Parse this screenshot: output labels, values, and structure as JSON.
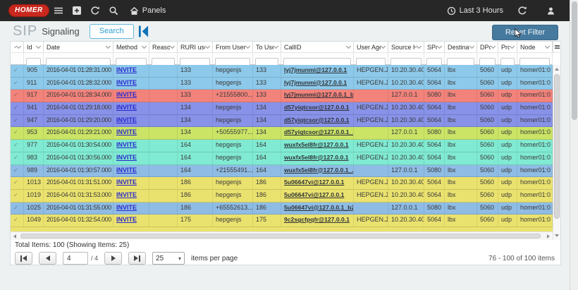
{
  "navbar": {
    "logo_text": "HOMER",
    "panels_label": "Panels",
    "time_range_label": "Last 3 Hours"
  },
  "toolbar": {
    "title_primary": "SIP",
    "title_secondary": "Signaling",
    "search_label": "Search",
    "reset_label": "Reset Filter"
  },
  "icons": {
    "navbar_left": [
      "menu-icon",
      "add-panel-icon",
      "reload-icon",
      "search-icon",
      "home-icon"
    ],
    "navbar_right": [
      "clock-icon",
      "refresh-icon",
      "user-icon"
    ],
    "title_row": [
      "kibana-icon"
    ],
    "select_caret": "▾"
  },
  "table": {
    "check_glyph": "✓",
    "columns": [
      {
        "key": "check",
        "label": ""
      },
      {
        "key": "id",
        "label": "Id"
      },
      {
        "key": "date",
        "label": "Date"
      },
      {
        "key": "method",
        "label": "Method"
      },
      {
        "key": "reason",
        "label": "Reason"
      },
      {
        "key": "ruri_user",
        "label": "RURI user"
      },
      {
        "key": "from_user",
        "label": "From User"
      },
      {
        "key": "to_user",
        "label": "To User"
      },
      {
        "key": "callid",
        "label": "CallID"
      },
      {
        "key": "user_agent",
        "label": "User Agent"
      },
      {
        "key": "source_host",
        "label": "Source Ho..."
      },
      {
        "key": "sport",
        "label": "SPort"
      },
      {
        "key": "dest_host",
        "label": "Destinatio..."
      },
      {
        "key": "dport",
        "label": "DPort"
      },
      {
        "key": "proto",
        "label": "Pro..."
      },
      {
        "key": "node",
        "label": "Node"
      }
    ],
    "rows": [
      {
        "id": "905",
        "date": "2016-04-01 01:28:31.000 +...",
        "method": "INVITE",
        "reason": "",
        "ruri_user": "133",
        "from_user": "hepgenjs",
        "to_user": "133",
        "callid": "lyj7jmunmi@127.0.0.1",
        "user_agent": "HEPGEN.J...",
        "source_host": "10.20.30.40",
        "sport": "5064",
        "dest_host": "lbx",
        "dport": "5060",
        "proto": "udp",
        "node": "homer01:0",
        "color": "skyblue"
      },
      {
        "id": "911",
        "date": "2016-04-01 01:28:32.000 +...",
        "method": "INVITE",
        "reason": "",
        "ruri_user": "133",
        "from_user": "hepgenjs",
        "to_user": "133",
        "callid": "lyj7jmunmi@127.0.0.1",
        "user_agent": "HEPGEN.J...",
        "source_host": "10.20.30.40",
        "sport": "5064",
        "dest_host": "lbx",
        "dport": "5060",
        "proto": "udp",
        "node": "homer01:0",
        "color": "skyblue"
      },
      {
        "id": "917",
        "date": "2016-04-01 01:28:34.000 +...",
        "method": "INVITE",
        "reason": "",
        "ruri_user": "133",
        "from_user": "+21555800...",
        "to_user": "133",
        "callid": "lyj7jmunmi@127.0.0.1_b...",
        "user_agent": "",
        "source_host": "127.0.0.1",
        "sport": "5080",
        "dest_host": "lbx",
        "dport": "5060",
        "proto": "udp",
        "node": "homer01:0",
        "color": "salmon"
      },
      {
        "id": "941",
        "date": "2016-04-01 01:29:18.000 +...",
        "method": "INVITE",
        "reason": "",
        "ruri_user": "134",
        "from_user": "hepgenjs",
        "to_user": "134",
        "callid": "d57yiqtcsor@127.0.0.1",
        "user_agent": "HEPGEN.J...",
        "source_host": "10.20.30.40",
        "sport": "5064",
        "dest_host": "lbx",
        "dport": "5060",
        "proto": "udp",
        "node": "homer01:0",
        "color": "periwinkle"
      },
      {
        "id": "947",
        "date": "2016-04-01 01:29:20.000 +...",
        "method": "INVITE",
        "reason": "",
        "ruri_user": "134",
        "from_user": "hepgenjs",
        "to_user": "134",
        "callid": "d57yiqtcsor@127.0.0.1",
        "user_agent": "HEPGEN.J...",
        "source_host": "10.20.30.40",
        "sport": "5064",
        "dest_host": "lbx",
        "dport": "5060",
        "proto": "udp",
        "node": "homer01:0",
        "color": "periwinkle"
      },
      {
        "id": "953",
        "date": "2016-04-01 01:29:21.000 +...",
        "method": "INVITE",
        "reason": "",
        "ruri_user": "134",
        "from_user": "+50555977...",
        "to_user": "134",
        "callid": "d57yiqtcsor@127.0.0.1_...",
        "user_agent": "",
        "source_host": "127.0.0.1",
        "sport": "5080",
        "dest_host": "lbx",
        "dport": "5060",
        "proto": "udp",
        "node": "homer01:0",
        "color": "yellowgreen"
      },
      {
        "id": "977",
        "date": "2016-04-01 01:30:54.000 +...",
        "method": "INVITE",
        "reason": "",
        "ruri_user": "164",
        "from_user": "hepgenjs",
        "to_user": "164",
        "callid": "wuxfx5el8fr@127.0.0.1",
        "user_agent": "HEPGEN.J...",
        "source_host": "10.20.30.40",
        "sport": "5064",
        "dest_host": "lbx",
        "dport": "5060",
        "proto": "udp",
        "node": "homer01:0",
        "color": "teal"
      },
      {
        "id": "983",
        "date": "2016-04-01 01:30:56.000 +...",
        "method": "INVITE",
        "reason": "",
        "ruri_user": "164",
        "from_user": "hepgenjs",
        "to_user": "164",
        "callid": "wuxfx5el8fr@127.0.0.1",
        "user_agent": "HEPGEN.J...",
        "source_host": "10.20.30.40",
        "sport": "5064",
        "dest_host": "lbx",
        "dport": "5060",
        "proto": "udp",
        "node": "homer01:0",
        "color": "teal"
      },
      {
        "id": "989",
        "date": "2016-04-01 01:30:57.000 +...",
        "method": "INVITE",
        "reason": "",
        "ruri_user": "164",
        "from_user": "+21555491...",
        "to_user": "164",
        "callid": "wuxfx5el8fr@127.0.0.1_...",
        "user_agent": "",
        "source_host": "127.0.0.1",
        "sport": "5080",
        "dest_host": "lbx",
        "dport": "5060",
        "proto": "udp",
        "node": "homer01:0",
        "color": "steelblue"
      },
      {
        "id": "1013",
        "date": "2016-04-01 01:31:51.000 +...",
        "method": "INVITE",
        "reason": "",
        "ruri_user": "186",
        "from_user": "hepgenjs",
        "to_user": "186",
        "callid": "5u06647vi@127.0.0.1",
        "user_agent": "HEPGEN.J...",
        "source_host": "10.20.30.40",
        "sport": "5064",
        "dest_host": "lbx",
        "dport": "5060",
        "proto": "udp",
        "node": "homer01:0",
        "color": "yellow"
      },
      {
        "id": "1019",
        "date": "2016-04-01 01:31:53.000 +...",
        "method": "INVITE",
        "reason": "",
        "ruri_user": "186",
        "from_user": "hepgenjs",
        "to_user": "186",
        "callid": "5u06647vi@127.0.0.1",
        "user_agent": "HEPGEN.J...",
        "source_host": "10.20.30.40",
        "sport": "5064",
        "dest_host": "lbx",
        "dport": "5060",
        "proto": "udp",
        "node": "homer01:0",
        "color": "yellow"
      },
      {
        "id": "1025",
        "date": "2016-04-01 01:31:55.000 +...",
        "method": "INVITE",
        "reason": "",
        "ruri_user": "186",
        "from_user": "+65552613...",
        "to_user": "186",
        "callid": "5u06647vi@127.0.0.1_b2...",
        "user_agent": "",
        "source_host": "127.0.0.1",
        "sport": "5080",
        "dest_host": "lbx",
        "dport": "5060",
        "proto": "udp",
        "node": "homer01:0",
        "color": "steelblue"
      },
      {
        "id": "1049",
        "date": "2016-04-01 01:32:54.000 +...",
        "method": "INVITE",
        "reason": "",
        "ruri_user": "175",
        "from_user": "hepgenjs",
        "to_user": "175",
        "callid": "9c2sgcfpqfr@127.0.0.1",
        "user_agent": "HEPGEN.J...",
        "source_host": "10.20.30.40",
        "sport": "5064",
        "dest_host": "lbx",
        "dport": "5060",
        "proto": "udp",
        "node": "homer01:0",
        "color": "yellow"
      }
    ],
    "partial_row_color": "yellow"
  },
  "footer": {
    "total_text": "Total Items: 100 (Showing Items: 25)",
    "current_page": "4",
    "total_pages_text": "/ 4",
    "page_size": "25",
    "page_size_label": "items per page",
    "range_text": "76 - 100 of 100 items"
  },
  "colors": {
    "navbar_bg": "#272727",
    "brand_red": "#C8281E",
    "page_bg": "#EDF1F2",
    "reset_button_bg": "#45799E",
    "search_button_border": "#66B8DC",
    "search_button_text": "#2D9FD0",
    "kibana_blue": "#1272B6",
    "method_link": "#2929CC",
    "rows": {
      "skyblue": "#8DC9EA",
      "salmon": "#F2837B",
      "periwinkle": "#8792E8",
      "yellowgreen": "#CBE466",
      "teal": "#80EAD2",
      "steelblue": "#8FBCE4",
      "yellow": "#EAE26E"
    }
  }
}
